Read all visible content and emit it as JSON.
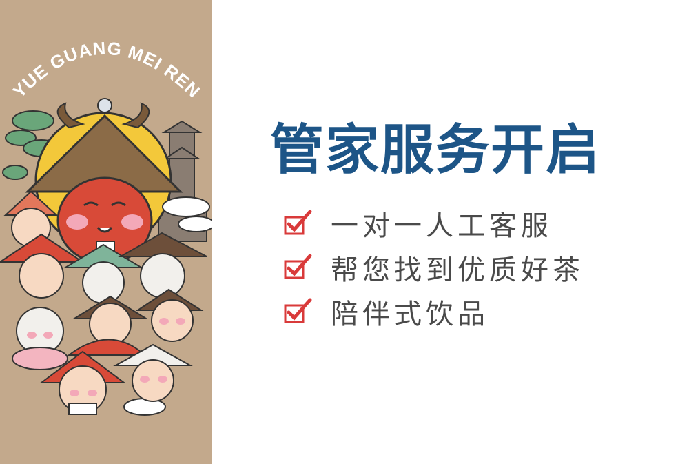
{
  "poster": {
    "brand_text": "YUE GUANG MEI REN",
    "icon": "cartoon-characters-illustration"
  },
  "main": {
    "title": "管家服务开启",
    "features": [
      {
        "label": "一对一人工客服",
        "icon": "checkbox-checked-icon"
      },
      {
        "label": "帮您找到优质好茶",
        "icon": "checkbox-checked-icon"
      },
      {
        "label": "陪伴式饮品",
        "icon": "checkbox-checked-icon"
      }
    ]
  },
  "colors": {
    "title": "#1d5587",
    "text": "#4a4a4a",
    "check_red": "#d93a3a",
    "panel_bg": "#c3a98c"
  }
}
